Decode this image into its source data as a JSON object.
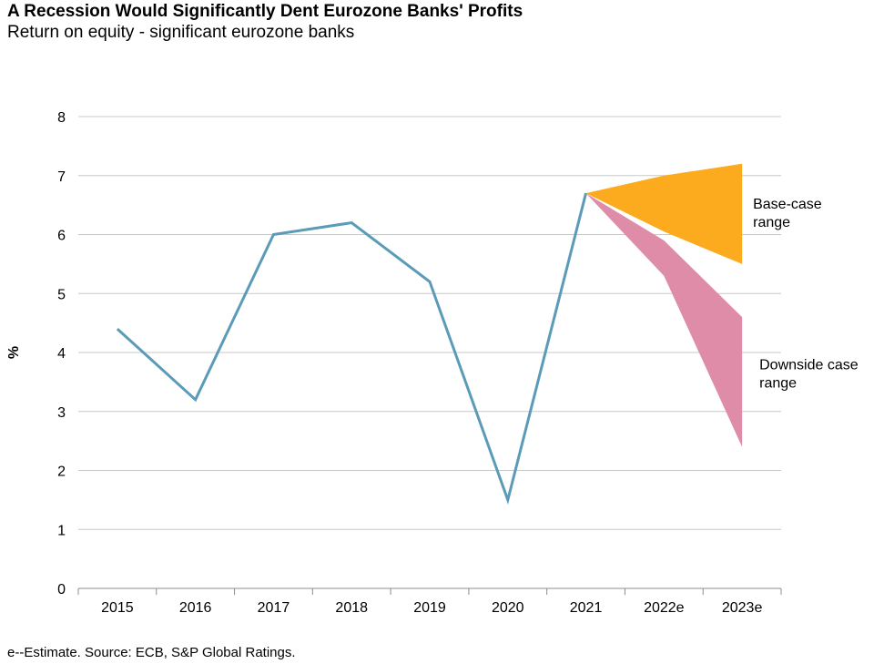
{
  "chart_data": {
    "type": "line",
    "title": "A Recession Would Significantly Dent Eurozone Banks' Profits",
    "subtitle": "Return on equity - significant eurozone banks",
    "ylabel": "%",
    "xlabel": "",
    "ylim": [
      0,
      8
    ],
    "yticks": [
      "0",
      "1",
      "2",
      "3",
      "4",
      "5",
      "6",
      "7",
      "8"
    ],
    "categories": [
      "2015",
      "2016",
      "2017",
      "2018",
      "2019",
      "2020",
      "2021",
      "2022e",
      "2023e"
    ],
    "grid": true,
    "series": [
      {
        "values": [
          4.4,
          3.2,
          6.0,
          6.2,
          5.2,
          1.5,
          6.7,
          null,
          null
        ],
        "color": "#5b9bb8"
      }
    ],
    "bands": [
      {
        "label": "Base-case range",
        "label_lines": [
          "Base-case",
          "range"
        ],
        "color": "#fbab1d",
        "x": [
          "2021",
          "2022e",
          "2023e"
        ],
        "upper": [
          6.7,
          7.0,
          7.2
        ],
        "lower": [
          6.7,
          6.05,
          5.5
        ]
      },
      {
        "label": "Downside case range",
        "label_lines": [
          "Downside case",
          "range"
        ],
        "color": "#de8ca8",
        "x": [
          "2021",
          "2022e",
          "2023e"
        ],
        "upper": [
          6.7,
          5.9,
          4.6
        ],
        "lower": [
          6.7,
          5.3,
          2.4
        ]
      }
    ],
    "footnote": "e--Estimate. Source: ECB, S&P Global Ratings."
  }
}
